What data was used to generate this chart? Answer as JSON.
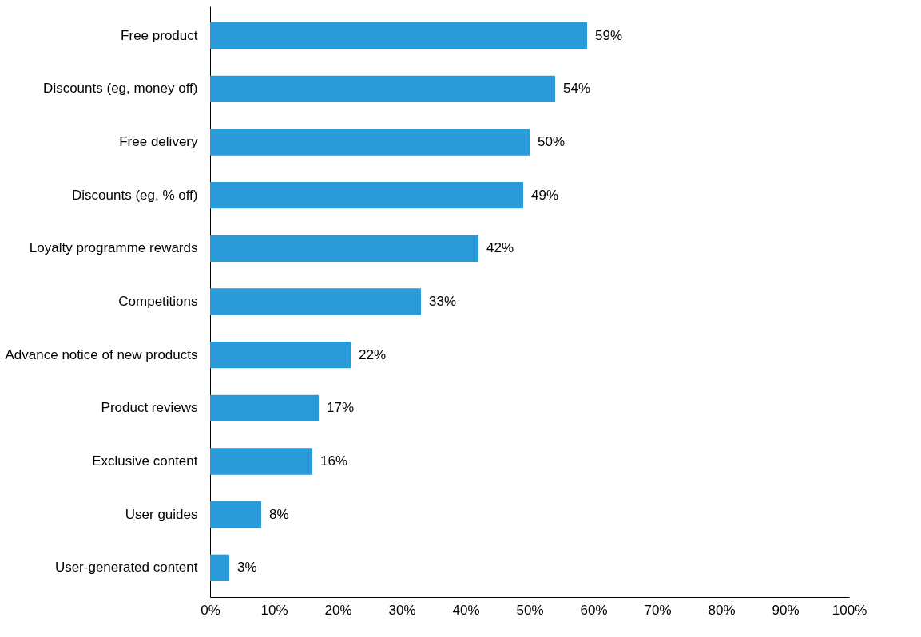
{
  "chart_data": {
    "type": "bar",
    "orientation": "horizontal",
    "categories": [
      "Free product",
      "Discounts (eg, money off)",
      "Free delivery",
      "Discounts (eg, % off)",
      "Loyalty programme rewards",
      "Competitions",
      "Advance notice of new products",
      "Product reviews",
      "Exclusive content",
      "User guides",
      "User-generated content"
    ],
    "values": [
      59,
      54,
      50,
      49,
      42,
      33,
      22,
      17,
      16,
      8,
      3
    ],
    "value_labels": [
      "59%",
      "54%",
      "50%",
      "49%",
      "42%",
      "33%",
      "22%",
      "17%",
      "16%",
      "8%",
      "3%"
    ],
    "color": "#2a9ad8",
    "xlim": [
      0,
      100
    ],
    "xticks": [
      {
        "value": 0,
        "label": "0%"
      },
      {
        "value": 10,
        "label": "10%"
      },
      {
        "value": 20,
        "label": "20%"
      },
      {
        "value": 30,
        "label": "30%"
      },
      {
        "value": 40,
        "label": "40%"
      },
      {
        "value": 50,
        "label": "50%"
      },
      {
        "value": 60,
        "label": "60%"
      },
      {
        "value": 70,
        "label": "70%"
      },
      {
        "value": 80,
        "label": "80%"
      },
      {
        "value": 90,
        "label": "90%"
      },
      {
        "value": 100,
        "label": "100%"
      }
    ],
    "grid": false
  }
}
